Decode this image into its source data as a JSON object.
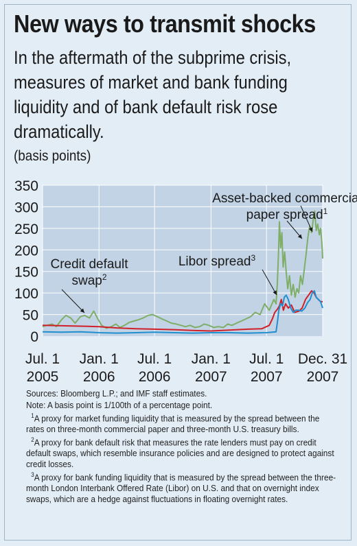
{
  "header": {
    "title": "New ways to transmit shocks",
    "subtitle": "In the aftermath of the subprime crisis, measures of market and bank funding liquidity and of bank default risk rose dramatically.",
    "units": "(basis points)"
  },
  "notes": {
    "sources": "Sources: Bloomberg L.P.; and IMF staff estimates.",
    "note": "Note: A basis point is 1/100th of a percentage point.",
    "fn1_mark": "1",
    "fn1": "A proxy for market funding liquidity that is measured by the spread between the rates on three-month commercial paper and three-month U.S. treasury bills.",
    "fn2_mark": "2",
    "fn2": "A proxy for bank default risk that measures the rate lenders must pay on credit default swaps, which resemble insurance policies and are designed to protect against credit losses.",
    "fn3_mark": "3",
    "fn3": "A proxy for bank funding liquidity that is measured by the spread between the three-month London Interbank Offered Rate (Libor) on U.S. and that on overnight index swaps, which are a hedge against fluctuations in floating overnight rates."
  },
  "chart_data": {
    "type": "line",
    "ylim": [
      0,
      350
    ],
    "yticks": [
      0,
      50,
      100,
      150,
      200,
      250,
      300,
      350
    ],
    "xlim": [
      "2005-07-01",
      "2007-12-31"
    ],
    "xticks": [
      {
        "date": "2005-07-01",
        "line1": "Jul. 1",
        "line2": "2005"
      },
      {
        "date": "2006-01-01",
        "line1": "Jan. 1",
        "line2": "2006"
      },
      {
        "date": "2006-07-01",
        "line1": "Jul. 1",
        "line2": "2006"
      },
      {
        "date": "2007-01-01",
        "line1": "Jan. 1",
        "line2": "2007"
      },
      {
        "date": "2007-07-01",
        "line1": "Jul. 1",
        "line2": "2007"
      },
      {
        "date": "2007-12-31",
        "line1": "Dec. 31",
        "line2": "2007"
      }
    ],
    "grid": true,
    "colors": {
      "plot_bg": "#c1d3e4",
      "grid": "#ffffff"
    },
    "annotations": [
      {
        "id": "abcp",
        "lines": [
          "Asset-backed commercial",
          "paper spread"
        ],
        "sup": "1"
      },
      {
        "id": "libor",
        "lines": [
          "Libor spread"
        ],
        "sup": "3"
      },
      {
        "id": "cds",
        "lines": [
          "Credit default",
          "swap"
        ],
        "sup": "2"
      }
    ],
    "series": [
      {
        "id": "abcp",
        "color": "#7fae68",
        "width": 2,
        "points": [
          [
            "2005-07-01",
            22
          ],
          [
            "2005-07-15",
            25
          ],
          [
            "2005-08-01",
            28
          ],
          [
            "2005-08-15",
            22
          ],
          [
            "2005-09-01",
            38
          ],
          [
            "2005-09-15",
            48
          ],
          [
            "2005-10-01",
            42
          ],
          [
            "2005-10-15",
            30
          ],
          [
            "2005-11-01",
            45
          ],
          [
            "2005-11-15",
            48
          ],
          [
            "2005-12-01",
            42
          ],
          [
            "2005-12-15",
            58
          ],
          [
            "2005-12-28",
            40
          ],
          [
            "2006-01-10",
            25
          ],
          [
            "2006-01-25",
            18
          ],
          [
            "2006-02-10",
            22
          ],
          [
            "2006-02-25",
            28
          ],
          [
            "2006-03-10",
            20
          ],
          [
            "2006-03-25",
            25
          ],
          [
            "2006-04-10",
            32
          ],
          [
            "2006-04-25",
            35
          ],
          [
            "2006-05-10",
            38
          ],
          [
            "2006-05-25",
            42
          ],
          [
            "2006-06-10",
            48
          ],
          [
            "2006-06-25",
            50
          ],
          [
            "2006-07-10",
            45
          ],
          [
            "2006-07-25",
            40
          ],
          [
            "2006-08-10",
            35
          ],
          [
            "2006-08-25",
            30
          ],
          [
            "2006-09-10",
            28
          ],
          [
            "2006-09-25",
            25
          ],
          [
            "2006-10-10",
            22
          ],
          [
            "2006-10-25",
            25
          ],
          [
            "2006-11-10",
            20
          ],
          [
            "2006-11-25",
            22
          ],
          [
            "2006-12-10",
            28
          ],
          [
            "2006-12-25",
            25
          ],
          [
            "2007-01-10",
            20
          ],
          [
            "2007-01-25",
            22
          ],
          [
            "2007-02-10",
            20
          ],
          [
            "2007-02-25",
            28
          ],
          [
            "2007-03-10",
            25
          ],
          [
            "2007-03-25",
            30
          ],
          [
            "2007-04-10",
            35
          ],
          [
            "2007-04-25",
            40
          ],
          [
            "2007-05-10",
            45
          ],
          [
            "2007-05-25",
            55
          ],
          [
            "2007-06-10",
            50
          ],
          [
            "2007-06-25",
            75
          ],
          [
            "2007-07-10",
            60
          ],
          [
            "2007-07-25",
            85
          ],
          [
            "2007-08-01",
            75
          ],
          [
            "2007-08-05",
            120
          ],
          [
            "2007-08-09",
            190
          ],
          [
            "2007-08-12",
            265
          ],
          [
            "2007-08-16",
            205
          ],
          [
            "2007-08-20",
            240
          ],
          [
            "2007-08-24",
            160
          ],
          [
            "2007-08-29",
            195
          ],
          [
            "2007-09-03",
            150
          ],
          [
            "2007-09-08",
            110
          ],
          [
            "2007-09-14",
            140
          ],
          [
            "2007-09-20",
            95
          ],
          [
            "2007-09-26",
            120
          ],
          [
            "2007-10-02",
            90
          ],
          [
            "2007-10-08",
            110
          ],
          [
            "2007-10-14",
            100
          ],
          [
            "2007-10-20",
            140
          ],
          [
            "2007-10-26",
            120
          ],
          [
            "2007-11-01",
            155
          ],
          [
            "2007-11-07",
            190
          ],
          [
            "2007-11-13",
            230
          ],
          [
            "2007-11-19",
            255
          ],
          [
            "2007-11-25",
            240
          ],
          [
            "2007-12-01",
            275
          ],
          [
            "2007-12-05",
            290
          ],
          [
            "2007-12-10",
            245
          ],
          [
            "2007-12-15",
            260
          ],
          [
            "2007-12-20",
            235
          ],
          [
            "2007-12-24",
            250
          ],
          [
            "2007-12-28",
            220
          ],
          [
            "2007-12-31",
            180
          ]
        ]
      },
      {
        "id": "cds",
        "color": "#d11f2a",
        "width": 2,
        "points": [
          [
            "2005-07-01",
            25
          ],
          [
            "2005-09-01",
            24
          ],
          [
            "2005-11-01",
            23
          ],
          [
            "2006-01-01",
            22
          ],
          [
            "2006-03-01",
            19
          ],
          [
            "2006-05-01",
            17
          ],
          [
            "2006-07-01",
            16
          ],
          [
            "2006-09-01",
            15
          ],
          [
            "2006-11-01",
            13
          ],
          [
            "2007-01-01",
            12
          ],
          [
            "2007-03-01",
            14
          ],
          [
            "2007-05-01",
            16
          ],
          [
            "2007-06-15",
            17
          ],
          [
            "2007-07-10",
            25
          ],
          [
            "2007-07-20",
            40
          ],
          [
            "2007-07-28",
            55
          ],
          [
            "2007-08-05",
            62
          ],
          [
            "2007-08-12",
            70
          ],
          [
            "2007-08-18",
            85
          ],
          [
            "2007-08-25",
            60
          ],
          [
            "2007-09-01",
            75
          ],
          [
            "2007-09-10",
            65
          ],
          [
            "2007-09-20",
            72
          ],
          [
            "2007-10-01",
            55
          ],
          [
            "2007-10-15",
            58
          ],
          [
            "2007-10-25",
            65
          ],
          [
            "2007-11-05",
            85
          ],
          [
            "2007-11-15",
            95
          ],
          [
            "2007-11-25",
            105
          ],
          [
            "2007-12-03",
            100
          ],
          [
            "2007-12-10",
            90
          ],
          [
            "2007-12-17",
            85
          ],
          [
            "2007-12-24",
            80
          ],
          [
            "2007-12-31",
            80
          ]
        ]
      },
      {
        "id": "libor",
        "color": "#1f8fcf",
        "width": 2,
        "points": [
          [
            "2005-07-01",
            10
          ],
          [
            "2005-09-01",
            9
          ],
          [
            "2005-11-01",
            10
          ],
          [
            "2006-01-01",
            8
          ],
          [
            "2006-03-01",
            7
          ],
          [
            "2006-05-01",
            8
          ],
          [
            "2006-07-01",
            9
          ],
          [
            "2006-09-01",
            8
          ],
          [
            "2006-11-01",
            7
          ],
          [
            "2007-01-01",
            8
          ],
          [
            "2007-03-01",
            8
          ],
          [
            "2007-05-01",
            7
          ],
          [
            "2007-07-01",
            8
          ],
          [
            "2007-08-01",
            10
          ],
          [
            "2007-08-06",
            35
          ],
          [
            "2007-08-10",
            60
          ],
          [
            "2007-08-16",
            75
          ],
          [
            "2007-08-22",
            70
          ],
          [
            "2007-08-28",
            90
          ],
          [
            "2007-09-03",
            95
          ],
          [
            "2007-09-10",
            85
          ],
          [
            "2007-09-18",
            65
          ],
          [
            "2007-09-26",
            55
          ],
          [
            "2007-10-04",
            60
          ],
          [
            "2007-10-14",
            60
          ],
          [
            "2007-10-24",
            58
          ],
          [
            "2007-11-03",
            65
          ],
          [
            "2007-11-12",
            78
          ],
          [
            "2007-11-20",
            85
          ],
          [
            "2007-11-27",
            100
          ],
          [
            "2007-12-04",
            105
          ],
          [
            "2007-12-10",
            90
          ],
          [
            "2007-12-17",
            85
          ],
          [
            "2007-12-24",
            80
          ],
          [
            "2007-12-31",
            65
          ]
        ]
      }
    ]
  }
}
